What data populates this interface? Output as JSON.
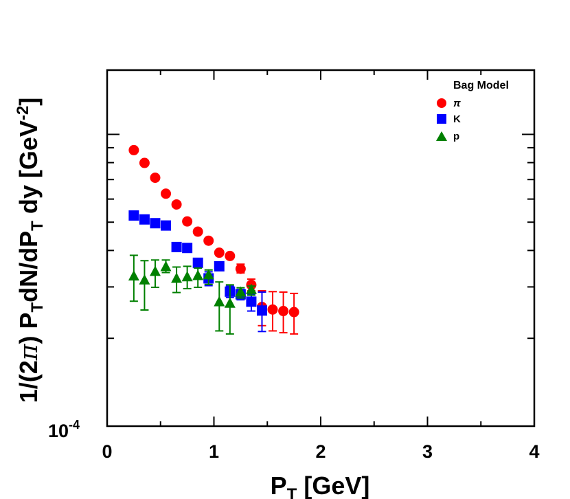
{
  "chart_data": {
    "type": "scatter",
    "xlabel": "P",
    "xlabel_sub": "T",
    "xlabel_suffix": " [GeV]",
    "ylabel_parts": [
      "1/(2",
      "π",
      ") P",
      "T",
      "dN/dP",
      "T",
      " dy [GeV",
      "-2",
      "]"
    ],
    "xlim": [
      0,
      4
    ],
    "ylim": [
      0.0001,
      0.00166
    ],
    "yscale": "log",
    "x_ticks": [
      "0",
      "1",
      "2",
      "3",
      "4"
    ],
    "y_tick_label": {
      "mantissa": "10",
      "exponent": "-4"
    },
    "legend": {
      "title": "Bag Model",
      "placement": "top-right"
    },
    "series": [
      {
        "name": "π",
        "marker": "circle",
        "color": "#ff0000",
        "x": [
          0.25,
          0.35,
          0.45,
          0.55,
          0.65,
          0.75,
          0.85,
          0.95,
          1.05,
          1.15,
          1.25,
          1.35,
          1.45,
          1.55,
          1.65,
          1.75
        ],
        "y": [
          0.000883,
          0.000798,
          0.00071,
          0.000626,
          0.000575,
          0.000503,
          0.000464,
          0.000432,
          0.000393,
          0.000383,
          0.000346,
          0.000305,
          0.000256,
          0.000251,
          0.000248,
          0.000246
        ],
        "y_low": [
          0.000883,
          0.000798,
          0.00071,
          0.000626,
          0.000575,
          0.000503,
          0.000464,
          0.000432,
          0.000393,
          0.000383,
          0.000335,
          0.000291,
          0.000221,
          0.000212,
          0.000209,
          0.000207
        ],
        "y_high": [
          0.000883,
          0.000798,
          0.00071,
          0.000626,
          0.000575,
          0.000503,
          0.000464,
          0.000432,
          0.000393,
          0.000383,
          0.000359,
          0.000319,
          0.000291,
          0.000289,
          0.000288,
          0.000285
        ]
      },
      {
        "name": "K",
        "marker": "square",
        "color": "#0000ff",
        "x": [
          0.25,
          0.35,
          0.45,
          0.55,
          0.65,
          0.75,
          0.85,
          0.95,
          1.05,
          1.15,
          1.25,
          1.35,
          1.45
        ],
        "y": [
          0.000527,
          0.000511,
          0.000496,
          0.000487,
          0.000411,
          0.000408,
          0.000363,
          0.000321,
          0.000353,
          0.000289,
          0.000283,
          0.000267,
          0.000249
        ],
        "y_low": [
          0.000527,
          0.000511,
          0.000496,
          0.000487,
          0.000411,
          0.000408,
          0.000355,
          0.000303,
          0.000344,
          0.000276,
          0.000271,
          0.000248,
          0.000211
        ],
        "y_high": [
          0.000527,
          0.000511,
          0.000496,
          0.000487,
          0.000411,
          0.000408,
          0.000372,
          0.000338,
          0.000363,
          0.000302,
          0.000294,
          0.000284,
          0.000288
        ]
      },
      {
        "name": "p",
        "marker": "triangle",
        "color": "#008000",
        "x": [
          0.25,
          0.35,
          0.45,
          0.55,
          0.65,
          0.75,
          0.85,
          0.95,
          1.05,
          1.15,
          1.25,
          1.35
        ],
        "y": [
          0.000326,
          0.000316,
          0.000338,
          0.000351,
          0.00032,
          0.000324,
          0.000327,
          0.000329,
          0.000266,
          0.000263,
          0.000287,
          0.000293
        ],
        "y_low": [
          0.000268,
          0.00025,
          0.000299,
          0.000336,
          0.000287,
          0.000296,
          0.000299,
          0.000306,
          0.000212,
          0.000207,
          0.000275,
          0.000281
        ],
        "y_high": [
          0.000385,
          0.000369,
          0.000371,
          0.000371,
          0.000351,
          0.000353,
          0.000348,
          0.000343,
          0.000312,
          0.000305,
          0.000298,
          0.000302
        ]
      }
    ]
  }
}
